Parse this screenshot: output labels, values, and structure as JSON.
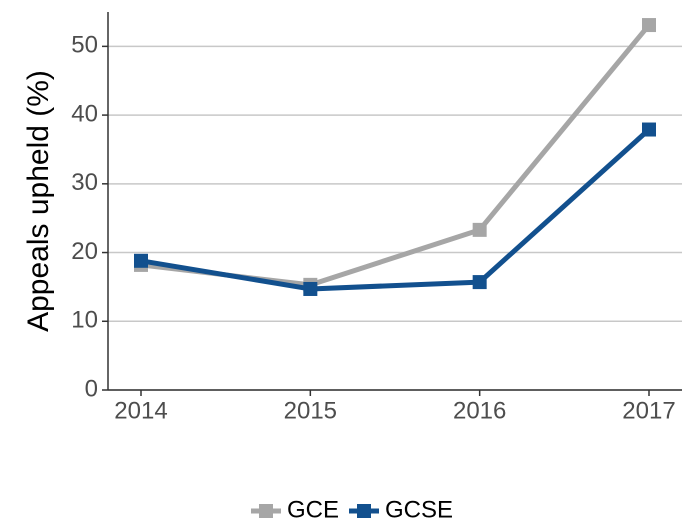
{
  "chart_data": {
    "type": "line",
    "y_label": "Appeals upheld (%)",
    "categories": [
      "2014",
      "2015",
      "2016",
      "2017"
    ],
    "series": [
      {
        "name": "GCE",
        "color": "#a6a6a6",
        "values": [
          18.2,
          15.3,
          23.3,
          53.1
        ]
      },
      {
        "name": "GCSE",
        "color": "#12508e",
        "values": [
          18.8,
          14.7,
          15.7,
          37.9
        ]
      }
    ],
    "ylim": [
      0,
      55
    ],
    "yticks": [
      0,
      10,
      20,
      30,
      40,
      50
    ],
    "grid": true,
    "legend": "bottom"
  }
}
